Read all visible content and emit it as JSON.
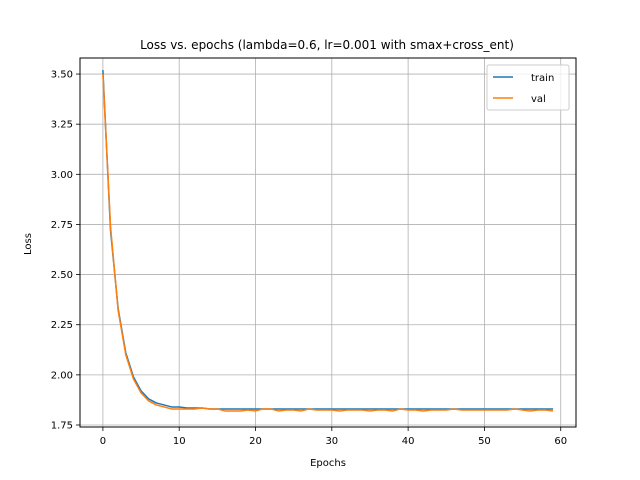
{
  "chart_data": {
    "type": "line",
    "title": "Loss vs. epochs (lambda=0.6, lr=0.001 with smax+cross_ent)",
    "xlabel": "Epochs",
    "ylabel": "Loss",
    "xlim": [
      -3,
      62
    ],
    "ylim": [
      1.74,
      3.58
    ],
    "xticks": [
      0,
      10,
      20,
      30,
      40,
      50,
      60
    ],
    "yticks": [
      1.75,
      2.0,
      2.25,
      2.5,
      2.75,
      3.0,
      3.25,
      3.5
    ],
    "ytick_labels": [
      "1.75",
      "2.00",
      "2.25",
      "2.50",
      "2.75",
      "3.00",
      "3.25",
      "3.50"
    ],
    "grid": true,
    "legend_position": "top-right",
    "x": [
      0,
      1,
      2,
      3,
      4,
      5,
      6,
      7,
      8,
      9,
      10,
      11,
      12,
      13,
      14,
      15,
      16,
      17,
      18,
      19,
      20,
      21,
      22,
      23,
      24,
      25,
      26,
      27,
      28,
      29,
      30,
      31,
      32,
      33,
      34,
      35,
      36,
      37,
      38,
      39,
      40,
      41,
      42,
      43,
      44,
      45,
      46,
      47,
      48,
      49,
      50,
      51,
      52,
      53,
      54,
      55,
      56,
      57,
      58,
      59
    ],
    "series": [
      {
        "name": "train",
        "color": "#1f77b4",
        "values": [
          3.52,
          2.72,
          2.33,
          2.11,
          1.99,
          1.92,
          1.88,
          1.86,
          1.85,
          1.84,
          1.84,
          1.835,
          1.835,
          1.835,
          1.83,
          1.83,
          1.83,
          1.83,
          1.83,
          1.83,
          1.83,
          1.83,
          1.83,
          1.83,
          1.83,
          1.83,
          1.83,
          1.83,
          1.83,
          1.83,
          1.83,
          1.83,
          1.83,
          1.83,
          1.83,
          1.83,
          1.83,
          1.83,
          1.83,
          1.83,
          1.83,
          1.83,
          1.83,
          1.83,
          1.83,
          1.83,
          1.83,
          1.83,
          1.83,
          1.83,
          1.83,
          1.83,
          1.83,
          1.83,
          1.83,
          1.83,
          1.83,
          1.83,
          1.83,
          1.83
        ]
      },
      {
        "name": "val",
        "color": "#ff7f0e",
        "values": [
          3.5,
          2.74,
          2.32,
          2.1,
          1.98,
          1.91,
          1.87,
          1.85,
          1.84,
          1.83,
          1.83,
          1.83,
          1.83,
          1.835,
          1.83,
          1.83,
          1.82,
          1.82,
          1.82,
          1.825,
          1.82,
          1.83,
          1.83,
          1.82,
          1.825,
          1.825,
          1.82,
          1.83,
          1.825,
          1.825,
          1.825,
          1.82,
          1.825,
          1.825,
          1.825,
          1.82,
          1.825,
          1.825,
          1.82,
          1.83,
          1.825,
          1.825,
          1.82,
          1.825,
          1.825,
          1.825,
          1.83,
          1.825,
          1.825,
          1.825,
          1.825,
          1.825,
          1.825,
          1.825,
          1.83,
          1.825,
          1.82,
          1.825,
          1.825,
          1.82
        ]
      }
    ]
  }
}
